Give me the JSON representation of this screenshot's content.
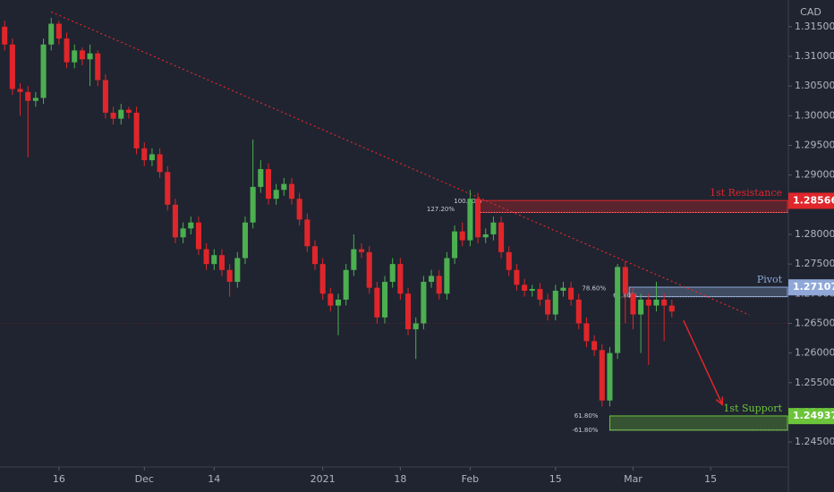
{
  "chart_data": {
    "type": "candlestick",
    "axis_title": "CAD",
    "up_color": "#4caf50",
    "down_color": "#e0262b",
    "grid": false,
    "xlim": [
      -0.6,
      100.9
    ],
    "ylim": [
      1.2411,
      1.3195
    ],
    "xticks": [
      {
        "value": 7,
        "label": "16"
      },
      {
        "value": 18,
        "label": "Dec"
      },
      {
        "value": 27,
        "label": "14"
      },
      {
        "value": 41,
        "label": "2021"
      },
      {
        "value": 51,
        "label": "18"
      },
      {
        "value": 60,
        "label": "Feb"
      },
      {
        "value": 71,
        "label": "15"
      },
      {
        "value": 81,
        "label": "Mar"
      },
      {
        "value": 91,
        "label": "15"
      }
    ],
    "yticks": [
      {
        "value": 1.245,
        "label": "1.24500"
      },
      {
        "value": 1.25,
        "label": "1.25000"
      },
      {
        "value": 1.255,
        "label": "1.25500"
      },
      {
        "value": 1.26,
        "label": "1.26000"
      },
      {
        "value": 1.265,
        "label": "1.26500"
      },
      {
        "value": 1.27,
        "label": "1.27000"
      },
      {
        "value": 1.275,
        "label": "1.27500"
      },
      {
        "value": 1.28,
        "label": "1.28000"
      },
      {
        "value": 1.285,
        "label": "1.28500"
      },
      {
        "value": 1.29,
        "label": "1.29000"
      },
      {
        "value": 1.295,
        "label": "1.29500"
      },
      {
        "value": 1.3,
        "label": "1.30000"
      },
      {
        "value": 1.305,
        "label": "1.30500"
      },
      {
        "value": 1.31,
        "label": "1.31000"
      },
      {
        "value": 1.315,
        "label": "1.31500"
      }
    ],
    "open": [
      1.315,
      1.312,
      1.3045,
      1.304,
      1.3025,
      1.303,
      1.312,
      1.3155,
      1.313,
      1.309,
      1.311,
      1.3095,
      1.3105,
      1.306,
      1.3005,
      1.2995,
      1.301,
      1.3005,
      1.2945,
      1.2925,
      1.2935,
      1.2905,
      1.285,
      1.2795,
      1.281,
      1.282,
      1.2775,
      1.275,
      1.2765,
      1.274,
      1.272,
      1.276,
      1.282,
      1.288,
      1.291,
      1.286,
      1.2875,
      1.2885,
      1.286,
      1.2825,
      1.278,
      1.275,
      1.27,
      1.268,
      1.269,
      1.274,
      1.2775,
      1.277,
      1.271,
      1.266,
      1.272,
      1.275,
      1.27,
      1.264,
      1.265,
      1.272,
      1.273,
      1.27,
      1.276,
      1.2805,
      1.279,
      1.286,
      1.2795,
      1.28,
      1.282,
      1.277,
      1.274,
      1.2715,
      1.2705,
      1.2708,
      1.269,
      1.2665,
      1.2705,
      1.271,
      1.269,
      1.265,
      1.262,
      1.2605,
      1.252,
      1.26,
      1.2745,
      1.27,
      1.2665,
      1.269,
      1.268,
      1.269,
      1.268
    ],
    "high": [
      1.316,
      1.313,
      1.3055,
      1.305,
      1.304,
      1.313,
      1.3165,
      1.316,
      1.314,
      1.312,
      1.3115,
      1.312,
      1.311,
      1.307,
      1.3015,
      1.302,
      1.3015,
      1.3015,
      1.2955,
      1.2945,
      1.2945,
      1.2915,
      1.286,
      1.282,
      1.283,
      1.283,
      1.2785,
      1.2775,
      1.2775,
      1.275,
      1.277,
      1.283,
      1.296,
      1.2925,
      1.292,
      1.2885,
      1.2895,
      1.2895,
      1.287,
      1.2835,
      1.279,
      1.276,
      1.271,
      1.27,
      1.275,
      1.28,
      1.2785,
      1.278,
      1.272,
      1.273,
      1.276,
      1.276,
      1.271,
      1.266,
      1.273,
      1.274,
      1.274,
      1.277,
      1.2815,
      1.282,
      1.2875,
      1.287,
      1.281,
      1.283,
      1.283,
      1.278,
      1.275,
      1.2725,
      1.2715,
      1.2718,
      1.27,
      1.2715,
      1.272,
      1.272,
      1.27,
      1.266,
      1.263,
      1.2615,
      1.261,
      1.275,
      1.2755,
      1.271,
      1.27,
      1.27,
      1.272,
      1.27,
      1.269
    ],
    "low": [
      1.311,
      1.3035,
      1.3,
      1.293,
      1.3015,
      1.302,
      1.311,
      1.312,
      1.308,
      1.308,
      1.3085,
      1.305,
      1.305,
      1.2995,
      1.2985,
      1.2985,
      1.2995,
      1.2935,
      1.2915,
      1.2915,
      1.2895,
      1.284,
      1.2785,
      1.2785,
      1.28,
      1.2765,
      1.274,
      1.274,
      1.273,
      1.2695,
      1.271,
      1.275,
      1.281,
      1.287,
      1.285,
      1.285,
      1.2865,
      1.285,
      1.2815,
      1.277,
      1.274,
      1.269,
      1.267,
      1.263,
      1.268,
      1.273,
      1.276,
      1.27,
      1.265,
      1.265,
      1.271,
      1.269,
      1.263,
      1.259,
      1.264,
      1.271,
      1.269,
      1.269,
      1.275,
      1.278,
      1.278,
      1.2785,
      1.2785,
      1.279,
      1.276,
      1.273,
      1.2705,
      1.2695,
      1.2695,
      1.268,
      1.2655,
      1.2655,
      1.2695,
      1.268,
      1.264,
      1.261,
      1.2595,
      1.251,
      1.251,
      1.259,
      1.265,
      1.264,
      1.26,
      1.258,
      1.267,
      1.262,
      1.266
    ],
    "close": [
      1.312,
      1.3045,
      1.304,
      1.3025,
      1.303,
      1.312,
      1.3155,
      1.313,
      1.309,
      1.311,
      1.3095,
      1.3105,
      1.306,
      1.3005,
      1.2995,
      1.301,
      1.3005,
      1.2945,
      1.2925,
      1.2935,
      1.2905,
      1.285,
      1.2795,
      1.281,
      1.282,
      1.2775,
      1.275,
      1.2765,
      1.274,
      1.272,
      1.276,
      1.282,
      1.288,
      1.291,
      1.286,
      1.2875,
      1.2885,
      1.286,
      1.2825,
      1.278,
      1.275,
      1.27,
      1.268,
      1.269,
      1.274,
      1.2775,
      1.277,
      1.271,
      1.266,
      1.272,
      1.275,
      1.27,
      1.264,
      1.265,
      1.272,
      1.273,
      1.27,
      1.276,
      1.2805,
      1.279,
      1.286,
      1.2795,
      1.28,
      1.282,
      1.277,
      1.274,
      1.2715,
      1.2705,
      1.2708,
      1.269,
      1.2665,
      1.2705,
      1.271,
      1.269,
      1.265,
      1.262,
      1.2605,
      1.252,
      1.26,
      1.2745,
      1.27,
      1.2665,
      1.269,
      1.268,
      1.269,
      1.268,
      1.267
    ],
    "current_price_line": 1.265,
    "levels": [
      {
        "name": "1st Resistance",
        "value": 1.28566,
        "zone": [
          1.2837,
          1.2857
        ],
        "start": 61,
        "color": "#e0262b"
      },
      {
        "name": "Pivot",
        "value": 1.27107,
        "zone": [
          1.2695,
          1.2711
        ],
        "start": 80.5,
        "color": "#8fa8d8"
      },
      {
        "name": "1st Support",
        "value": 1.24937,
        "zone": [
          1.247,
          1.2494
        ],
        "start": 78,
        "color": "#6cc43a"
      }
    ],
    "fib_labels": [
      {
        "label": "127.20%",
        "level": 1.2842,
        "at": 58
      },
      {
        "label": "100.00%",
        "level": 1.2856,
        "at": 61.5
      },
      {
        "label": "78.60%",
        "level": 1.2709,
        "at": 77.5
      },
      {
        "label": "61.80%",
        "level": 1.2697,
        "at": 81.5
      },
      {
        "label": "61.80%",
        "level": 1.2494,
        "at": 76.5
      },
      {
        "label": "-61.80%",
        "level": 1.247,
        "at": 76.5
      }
    ],
    "trendline": {
      "x": [
        6,
        96
      ],
      "y": [
        1.3175,
        1.2664
      ],
      "color": "#e0262b"
    },
    "arrow": {
      "x": [
        87.5,
        92.5
      ],
      "y": [
        1.2655,
        1.2513
      ],
      "color": "#e0262b"
    }
  }
}
